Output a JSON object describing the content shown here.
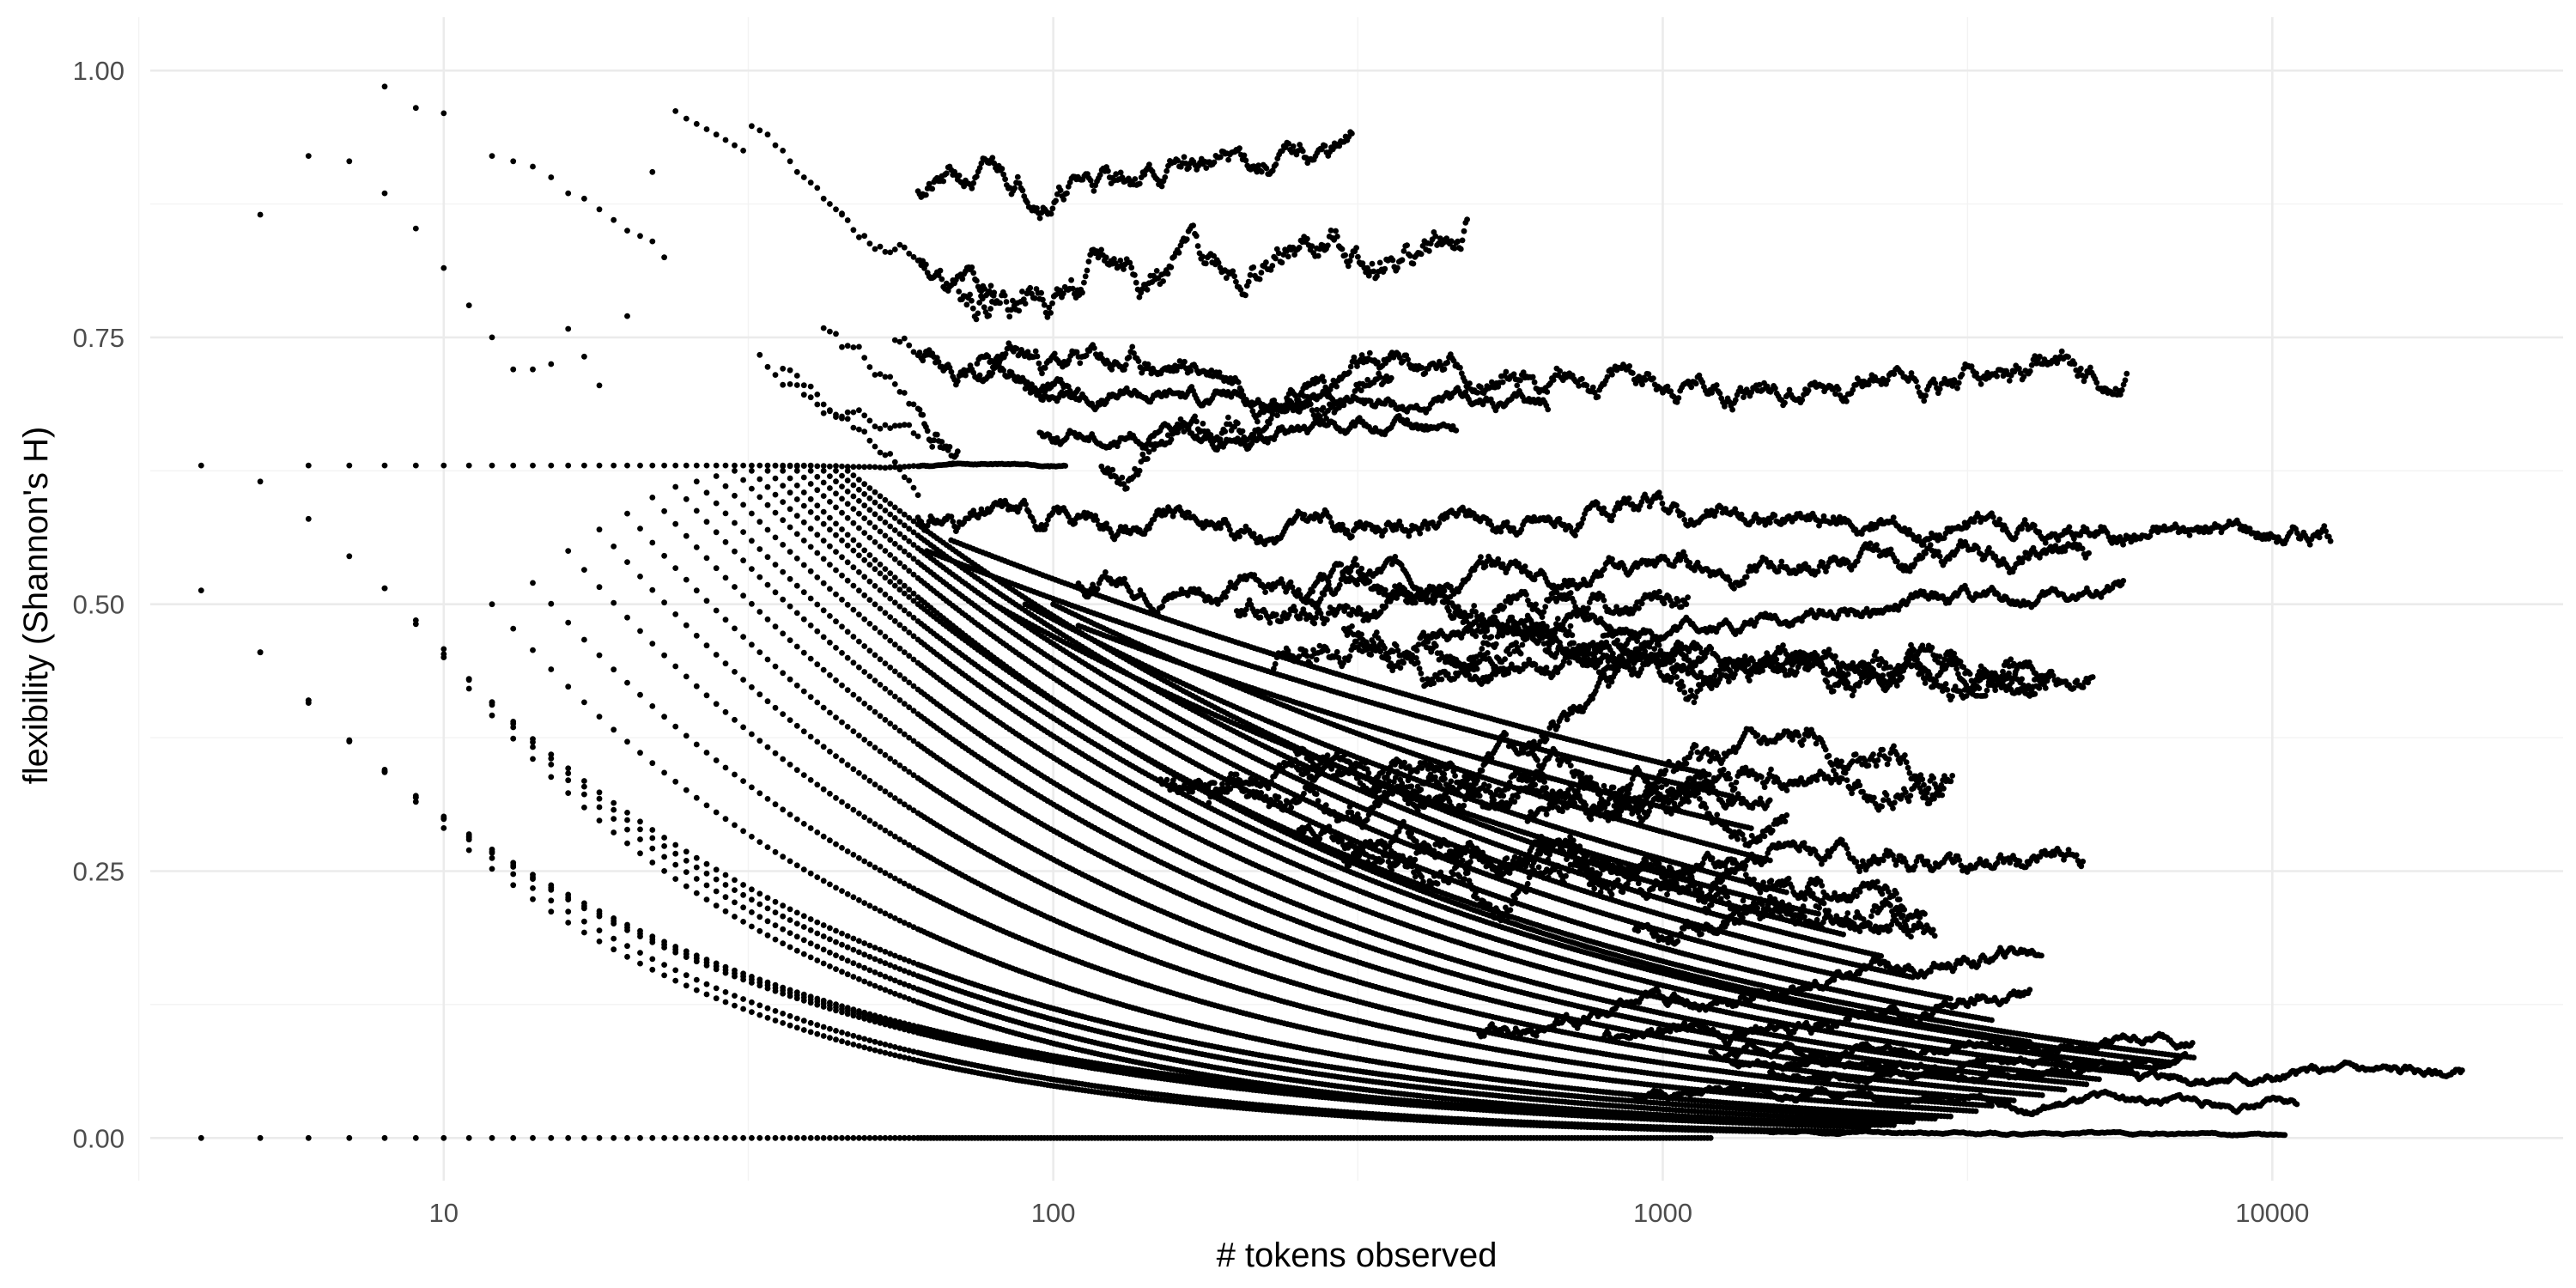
{
  "chart_data": {
    "type": "scatter",
    "title": "",
    "xlabel": "# tokens observed",
    "ylabel": "flexibility (Shannon's H)",
    "x_scale": "log10",
    "xlim": [
      3.3,
      30000
    ],
    "ylim": [
      -0.04,
      1.05
    ],
    "x_ticks": [
      10,
      100,
      1000,
      10000
    ],
    "x_tick_labels": [
      "10",
      "100",
      "1000",
      "10000"
    ],
    "x_minor_ticks": [
      3.16,
      31.6,
      316,
      3162,
      31623
    ],
    "y_ticks": [
      0,
      0.25,
      0.5,
      0.75,
      1
    ],
    "y_tick_labels": [
      "0.00",
      "0.25",
      "0.50",
      "0.75",
      "1.00"
    ],
    "y_minor_ticks": [
      0.125,
      0.375,
      0.625,
      0.875
    ],
    "grid": true,
    "legend": "none",
    "point_color": "#000000",
    "series": [
      {
        "kind": "decay",
        "x_start": 4,
        "x_end": 1200,
        "y_start": 0,
        "y_end": 0
      },
      {
        "kind": "decay",
        "x_start": 8,
        "x_end": 1500,
        "y_start": 0.345,
        "y_end": 0.006
      },
      {
        "kind": "decay",
        "x_start": 10,
        "x_end": 2000,
        "y_start": 0.3,
        "y_end": 0.006
      },
      {
        "kind": "decay",
        "x_start": 9,
        "x_end": 2200,
        "y_start": 0.485,
        "y_end": 0.01
      },
      {
        "kind": "decay",
        "x_start": 10,
        "x_end": 2400,
        "y_start": 0.458,
        "y_end": 0.012
      },
      {
        "kind": "decay",
        "x_start": 11,
        "x_end": 2600,
        "y_start": 0.43,
        "y_end": 0.015
      },
      {
        "kind": "decay",
        "x_start": 7,
        "x_end": 2300,
        "y_start": 0.372,
        "y_end": 0.012
      },
      {
        "kind": "decay",
        "x_start": 6,
        "x_end": 1800,
        "y_start": 0.41,
        "y_end": 0.012
      },
      {
        "kind": "decay",
        "x_start": 5,
        "x_end": 1600,
        "y_start": 0.455,
        "y_end": 0.014
      },
      {
        "kind": "decay",
        "x_start": 8,
        "x_end": 2800,
        "y_start": 0.515,
        "y_end": 0.018
      },
      {
        "kind": "decay",
        "x_start": 12,
        "x_end": 3000,
        "y_start": 0.5,
        "y_end": 0.02
      },
      {
        "kind": "decay",
        "x_start": 14,
        "x_end": 3300,
        "y_start": 0.52,
        "y_end": 0.025
      },
      {
        "kind": "decay",
        "x_start": 16,
        "x_end": 3500,
        "y_start": 0.55,
        "y_end": 0.03
      },
      {
        "kind": "decay",
        "x_start": 18,
        "x_end": 3800,
        "y_start": 0.57,
        "y_end": 0.035
      },
      {
        "kind": "decay",
        "x_start": 20,
        "x_end": 4200,
        "y_start": 0.585,
        "y_end": 0.04
      },
      {
        "kind": "decay",
        "x_start": 22,
        "x_end": 4600,
        "y_start": 0.6,
        "y_end": 0.045
      },
      {
        "kind": "decay",
        "x_start": 24,
        "x_end": 5000,
        "y_start": 0.61,
        "y_end": 0.05
      },
      {
        "kind": "decay",
        "x_start": 26,
        "x_end": 5200,
        "y_start": 0.615,
        "y_end": 0.055
      },
      {
        "kind": "decay",
        "x_start": 28,
        "x_end": 6000,
        "y_start": 0.62,
        "y_end": 0.06
      },
      {
        "kind": "decay",
        "x_start": 30,
        "x_end": 6500,
        "y_start": 0.625,
        "y_end": 0.065
      },
      {
        "kind": "decay",
        "x_start": 32,
        "x_end": 7000,
        "y_start": 0.625,
        "y_end": 0.07
      },
      {
        "kind": "decay",
        "x_start": 34,
        "x_end": 7500,
        "y_start": 0.625,
        "y_end": 0.075
      },
      {
        "kind": "decay",
        "x_start": 36,
        "x_end": 4000,
        "y_start": 0.625,
        "y_end": 0.09
      },
      {
        "kind": "decay",
        "x_start": 38,
        "x_end": 3500,
        "y_start": 0.625,
        "y_end": 0.11
      },
      {
        "kind": "decay",
        "x_start": 40,
        "x_end": 3000,
        "y_start": 0.625,
        "y_end": 0.13
      },
      {
        "kind": "decay",
        "x_start": 42,
        "x_end": 2600,
        "y_start": 0.625,
        "y_end": 0.15
      },
      {
        "kind": "decay",
        "x_start": 44,
        "x_end": 2300,
        "y_start": 0.625,
        "y_end": 0.17
      },
      {
        "kind": "decay",
        "x_start": 46,
        "x_end": 2000,
        "y_start": 0.625,
        "y_end": 0.19
      },
      {
        "kind": "decay",
        "x_start": 80,
        "x_end": 1800,
        "y_start": 0.5,
        "y_end": 0.21
      },
      {
        "kind": "decay",
        "x_start": 90,
        "x_end": 1600,
        "y_start": 0.5,
        "y_end": 0.23
      },
      {
        "kind": "decay",
        "x_start": 100,
        "x_end": 1500,
        "y_start": 0.5,
        "y_end": 0.26
      },
      {
        "kind": "decay",
        "x_start": 110,
        "x_end": 1400,
        "y_start": 0.48,
        "y_end": 0.29
      },
      {
        "kind": "decay",
        "x_start": 62,
        "x_end": 1300,
        "y_start": 0.55,
        "y_end": 0.32
      },
      {
        "kind": "decay",
        "x_start": 68,
        "x_end": 1200,
        "y_start": 0.56,
        "y_end": 0.34
      },
      {
        "kind": "pts",
        "x": [
          4,
          5,
          6,
          7,
          8
        ],
        "y": [
          0.63,
          0.615,
          0.58,
          0.545,
          0.515
        ]
      },
      {
        "kind": "pts",
        "x": [
          4,
          5,
          6,
          7
        ],
        "y": [
          0.513,
          0.455,
          0.41,
          0.372
        ]
      },
      {
        "kind": "pts",
        "x": [
          6,
          7,
          8,
          9,
          10,
          11,
          12,
          13,
          14,
          15,
          16,
          17,
          18,
          19,
          20,
          21,
          22,
          23,
          24,
          25,
          26,
          27,
          28,
          29,
          30,
          31,
          32,
          33,
          34,
          35,
          36,
          37,
          38,
          39,
          40
        ],
        "y": [
          0.63,
          0.63,
          0.63,
          0.63,
          0.63,
          0.63,
          0.63,
          0.63,
          0.63,
          0.63,
          0.63,
          0.63,
          0.63,
          0.63,
          0.63,
          0.63,
          0.63,
          0.63,
          0.63,
          0.63,
          0.63,
          0.63,
          0.63,
          0.63,
          0.63,
          0.63,
          0.63,
          0.63,
          0.63,
          0.63,
          0.63,
          0.63,
          0.63,
          0.63,
          0.63
        ]
      },
      {
        "kind": "pts",
        "x": [
          5,
          6,
          7,
          8,
          9,
          10
        ],
        "y": [
          0.865,
          0.92,
          0.915,
          0.985,
          0.965,
          0.96
        ]
      },
      {
        "kind": "pts",
        "x": [
          8,
          9,
          10,
          11,
          12
        ],
        "y": [
          0.885,
          0.852,
          0.815,
          0.78,
          0.75
        ]
      },
      {
        "kind": "pts",
        "x": [
          12,
          13,
          14,
          15,
          16,
          17,
          18,
          19,
          20,
          21,
          22,
          23
        ],
        "y": [
          0.92,
          0.915,
          0.91,
          0.9,
          0.885,
          0.88,
          0.87,
          0.86,
          0.85,
          0.845,
          0.84,
          0.825
        ]
      },
      {
        "kind": "pts",
        "x": [
          13,
          14,
          15,
          16,
          17,
          18
        ],
        "y": [
          0.72,
          0.72,
          0.725,
          0.758,
          0.732,
          0.705
        ]
      },
      {
        "kind": "pts",
        "x": [
          20,
          22,
          24,
          25,
          26,
          27,
          28,
          29,
          30,
          31,
          32,
          33,
          34,
          35,
          36,
          37,
          38,
          39,
          40,
          41,
          42,
          43,
          44,
          45
        ],
        "y": [
          0.77,
          0.905,
          0.962,
          0.955,
          0.95,
          0.945,
          0.94,
          0.935,
          0.93,
          0.925,
          0.948,
          0.944,
          0.94,
          0.93,
          0.925,
          0.915,
          0.905,
          0.9,
          0.895,
          0.89,
          0.88,
          0.875,
          0.87,
          0.865
        ]
      },
      {
        "kind": "walk",
        "x_start": 45,
        "x_end": 80,
        "y_start": 0.86,
        "y_end": 0.78,
        "amp": 0.03,
        "seed": 11
      },
      {
        "kind": "walk",
        "x_start": 33,
        "x_end": 60,
        "y_start": 0.73,
        "y_end": 0.63,
        "amp": 0.03,
        "seed": 12
      },
      {
        "kind": "walk",
        "x_start": 36,
        "x_end": 60,
        "y_start": 0.72,
        "y_end": 0.62,
        "amp": 0.02,
        "seed": 13
      },
      {
        "kind": "walk",
        "x_start": 42,
        "x_end": 70,
        "y_start": 0.76,
        "y_end": 0.63,
        "amp": 0.03,
        "seed": 14
      },
      {
        "kind": "walk",
        "x_start": 55,
        "x_end": 110,
        "y_start": 0.75,
        "y_end": 0.69,
        "amp": 0.02,
        "seed": 15
      },
      {
        "kind": "walk",
        "x_start": 60,
        "x_end": 310,
        "y_start": 0.89,
        "y_end": 0.92,
        "amp": 0.025,
        "seed": 21
      },
      {
        "kind": "walk",
        "x_start": 70,
        "x_end": 480,
        "y_start": 0.8,
        "y_end": 0.84,
        "amp": 0.035,
        "seed": 22
      },
      {
        "kind": "walk",
        "x_start": 75,
        "x_end": 5800,
        "y_start": 0.72,
        "y_end": 0.71,
        "amp": 0.025,
        "seed": 23
      },
      {
        "kind": "walk",
        "x_start": 90,
        "x_end": 650,
        "y_start": 0.7,
        "y_end": 0.68,
        "amp": 0.015,
        "seed": 24
      },
      {
        "kind": "walk",
        "x_start": 95,
        "x_end": 460,
        "y_start": 0.66,
        "y_end": 0.66,
        "amp": 0.015,
        "seed": 25
      },
      {
        "kind": "walk",
        "x_start": 120,
        "x_end": 360,
        "y_start": 0.63,
        "y_end": 0.72,
        "amp": 0.03,
        "seed": 26
      },
      {
        "kind": "walk",
        "x_start": 35,
        "x_end": 105,
        "y_start": 0.63,
        "y_end": 0.63,
        "amp": 0.002,
        "seed": 27
      },
      {
        "kind": "walk",
        "x_start": 60,
        "x_end": 12500,
        "y_start": 0.58,
        "y_end": 0.57,
        "amp": 0.02,
        "seed": 31
      },
      {
        "kind": "walk",
        "x_start": 110,
        "x_end": 5000,
        "y_start": 0.52,
        "y_end": 0.545,
        "amp": 0.02,
        "seed": 32
      },
      {
        "kind": "walk",
        "x_start": 400,
        "x_end": 5700,
        "y_start": 0.47,
        "y_end": 0.51,
        "amp": 0.015,
        "seed": 33
      },
      {
        "kind": "walk",
        "x_start": 450,
        "x_end": 5100,
        "y_start": 0.45,
        "y_end": 0.44,
        "amp": 0.02,
        "seed": 34
      },
      {
        "kind": "walk",
        "x_start": 300,
        "x_end": 4300,
        "y_start": 0.47,
        "y_end": 0.42,
        "amp": 0.03,
        "seed": 35
      },
      {
        "kind": "walk",
        "x_start": 200,
        "x_end": 4100,
        "y_start": 0.49,
        "y_end": 0.43,
        "amp": 0.025,
        "seed": 36
      },
      {
        "kind": "walk",
        "x_start": 260,
        "x_end": 1100,
        "y_start": 0.5,
        "y_end": 0.51,
        "amp": 0.025,
        "seed": 37
      },
      {
        "kind": "walk",
        "x_start": 230,
        "x_end": 900,
        "y_start": 0.44,
        "y_end": 0.49,
        "amp": 0.03,
        "seed": 38
      },
      {
        "kind": "walk",
        "x_start": 600,
        "x_end": 1200,
        "y_start": 0.37,
        "y_end": 0.46,
        "amp": 0.02,
        "seed": 39
      },
      {
        "kind": "walk",
        "x_start": 150,
        "x_end": 3000,
        "y_start": 0.33,
        "y_end": 0.35,
        "amp": 0.025,
        "seed": 41
      },
      {
        "kind": "walk",
        "x_start": 180,
        "x_end": 2900,
        "y_start": 0.31,
        "y_end": 0.33,
        "amp": 0.025,
        "seed": 42
      },
      {
        "kind": "walk",
        "x_start": 250,
        "x_end": 4900,
        "y_start": 0.28,
        "y_end": 0.253,
        "amp": 0.02,
        "seed": 43
      },
      {
        "kind": "walk",
        "x_start": 300,
        "x_end": 2800,
        "y_start": 0.26,
        "y_end": 0.2,
        "amp": 0.03,
        "seed": 44
      },
      {
        "kind": "walk",
        "x_start": 350,
        "x_end": 2500,
        "y_start": 0.27,
        "y_end": 0.22,
        "amp": 0.025,
        "seed": 45
      },
      {
        "kind": "walk",
        "x_start": 500,
        "x_end": 4200,
        "y_start": 0.1,
        "y_end": 0.175,
        "amp": 0.015,
        "seed": 46
      },
      {
        "kind": "walk",
        "x_start": 800,
        "x_end": 4000,
        "y_start": 0.09,
        "y_end": 0.13,
        "amp": 0.015,
        "seed": 47
      },
      {
        "kind": "walk",
        "x_start": 1500,
        "x_end": 20500,
        "y_start": 0.06,
        "y_end": 0.06,
        "amp": 0.01,
        "seed": 48
      },
      {
        "kind": "walk",
        "x_start": 1200,
        "x_end": 7400,
        "y_start": 0.08,
        "y_end": 0.095,
        "amp": 0.01,
        "seed": 49
      },
      {
        "kind": "walk",
        "x_start": 1300,
        "x_end": 7200,
        "y_start": 0.07,
        "y_end": 0.072,
        "amp": 0.008,
        "seed": 50
      },
      {
        "kind": "walk",
        "x_start": 900,
        "x_end": 11000,
        "y_start": 0.04,
        "y_end": 0.03,
        "amp": 0.008,
        "seed": 51
      },
      {
        "kind": "walk",
        "x_start": 600,
        "x_end": 1500,
        "y_start": 0.3,
        "y_end": 0.32,
        "amp": 0.02,
        "seed": 52
      },
      {
        "kind": "walk",
        "x_start": 900,
        "x_end": 2700,
        "y_start": 0.2,
        "y_end": 0.21,
        "amp": 0.02,
        "seed": 53
      },
      {
        "kind": "walk",
        "x_start": 1500,
        "x_end": 10500,
        "y_start": 0.005,
        "y_end": 0.003,
        "amp": 0.002,
        "seed": 54
      },
      {
        "kind": "walk",
        "x_start": 250,
        "x_end": 1600,
        "y_start": 0.36,
        "y_end": 0.3,
        "amp": 0.025,
        "seed": 55
      }
    ]
  }
}
